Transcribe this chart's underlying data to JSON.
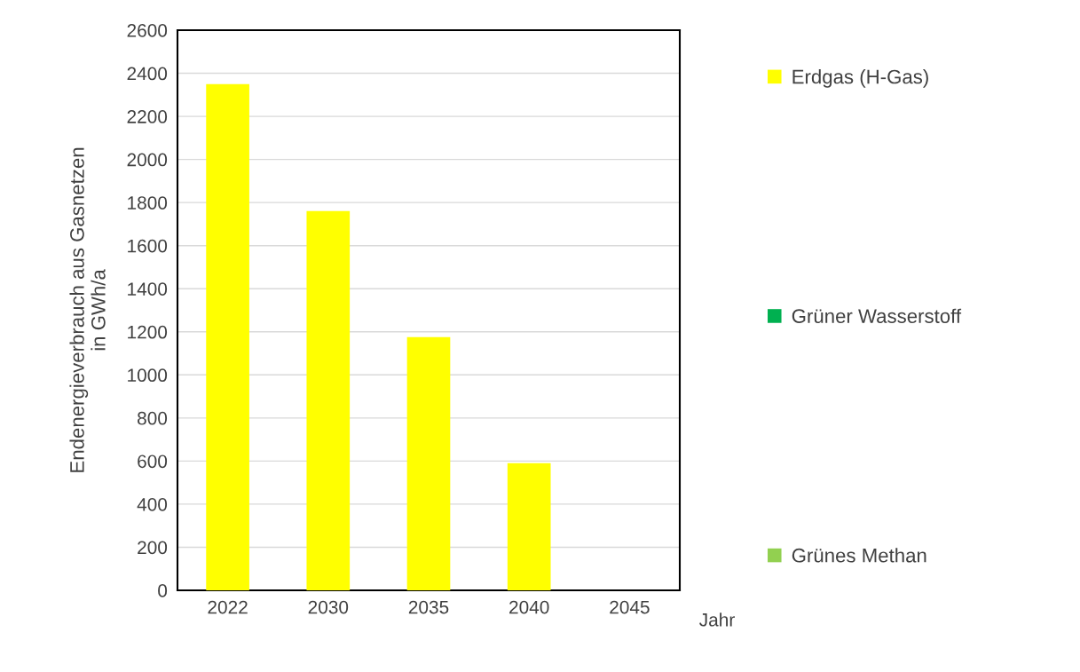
{
  "chart_data": {
    "type": "bar",
    "xlabel": "Jahr",
    "ylabel": "Endenergieverbrauch aus Gasnetzen\nin GWh/a",
    "categories": [
      "2022",
      "2030",
      "2035",
      "2040",
      "2045"
    ],
    "series": [
      {
        "name": "Erdgas (H-Gas)",
        "color": "#ffff00",
        "values": [
          2350,
          1760,
          1175,
          590,
          0
        ]
      },
      {
        "name": "Grüner Wasserstoff",
        "color": "#00b050",
        "values": [
          0,
          0,
          0,
          0,
          0
        ]
      },
      {
        "name": "Grünes Methan",
        "color": "#92d050",
        "values": [
          0,
          0,
          0,
          0,
          0
        ]
      }
    ],
    "ylim": [
      0,
      2600
    ],
    "yticks": [
      0,
      200,
      400,
      600,
      800,
      1000,
      1200,
      1400,
      1600,
      1800,
      2000,
      2200,
      2400,
      2600
    ],
    "grid": "y",
    "legend": "right"
  }
}
